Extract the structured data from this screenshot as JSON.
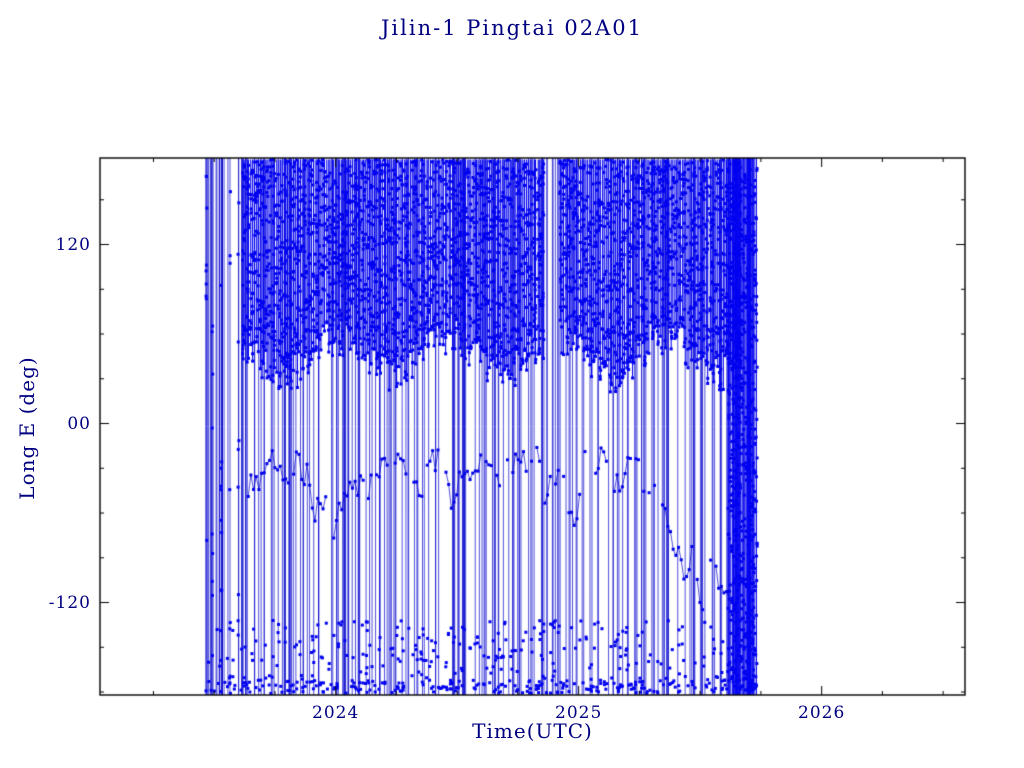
{
  "chart_data": {
    "type": "scatter",
    "title": "Jilin-1 Pingtai 02A01",
    "xlabel": "Time(UTC)",
    "ylabel": "Long E (deg)",
    "xlim": [
      2023.03,
      2026.59
    ],
    "ylim": [
      -182,
      178
    ],
    "xticks": [
      {
        "value": 2024,
        "label": "2024"
      },
      {
        "value": 2025,
        "label": "2025"
      },
      {
        "value": 2026,
        "label": "2026"
      }
    ],
    "yticks": [
      {
        "value": 120,
        "label": "120"
      },
      {
        "value": 0,
        "label": "00"
      },
      {
        "value": -120,
        "label": "-120"
      }
    ],
    "x_minor_step": 0.25,
    "y_minor_step": 30,
    "axis_color": "#000000",
    "text_color": "#000080",
    "line_color": "#0000CD",
    "marker_color": "#0000F0",
    "background": "#FFFFFF",
    "data_extent": {
      "x_start": 2023.465,
      "x_end": 2025.735
    },
    "pattern": {
      "seed": 20240101,
      "vertical_line_count": 230,
      "gaps": [
        {
          "center": 2024.89,
          "half_width": 0.03
        }
      ],
      "band": {
        "x_start": 2023.62,
        "x_end": 2025.67,
        "y_top": 177,
        "y_lower_base": 46,
        "y_lower_wave": 13,
        "columns": 270,
        "points_per_column": 14
      },
      "mid_trail": {
        "x_start": 2023.64,
        "x_end": 2025.7,
        "step": 0.011,
        "y_start": -40,
        "wander": 34,
        "y_min": -128,
        "y_max": -16,
        "gap_prob": 0.18
      },
      "bottom_scatter": {
        "count": 300,
        "y_min": -178,
        "y_max": -132
      },
      "bottom_edge": {
        "count": 220,
        "y_min": -181,
        "y_max": -172
      },
      "right_cluster": {
        "x_start": 2025.615,
        "x_end": 2025.735,
        "line_count": 40,
        "count": 600
      },
      "early_columns": [
        2023.468,
        2023.492,
        2023.53,
        2023.565,
        2023.6
      ],
      "early_markers_per_column": 9
    }
  }
}
